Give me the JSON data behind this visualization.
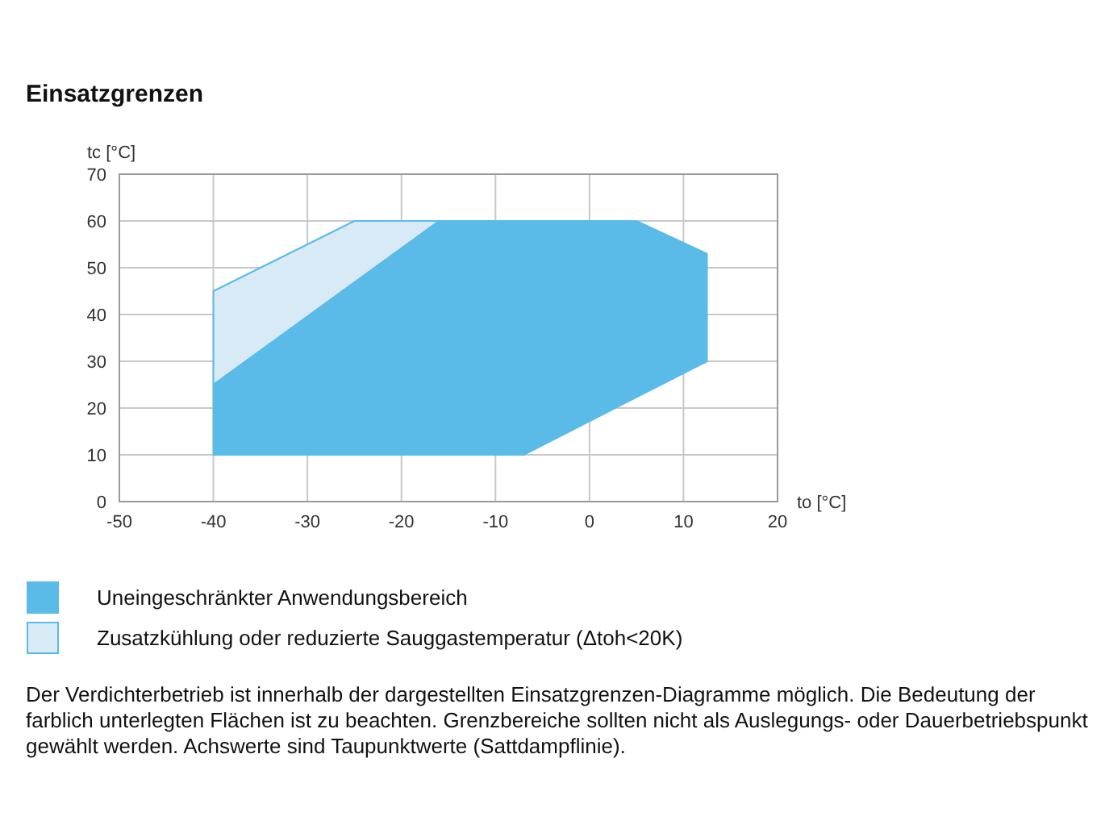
{
  "chart_data": {
    "type": "area",
    "title": "Einsatzgrenzen",
    "xlabel": "to [°C]",
    "ylabel": "tc [°C]",
    "xlim": [
      -50,
      20
    ],
    "xticks": [
      -50,
      -40,
      -30,
      -20,
      -10,
      0,
      10,
      20
    ],
    "ylim": [
      0,
      70
    ],
    "yticks": [
      0,
      10,
      20,
      30,
      40,
      50,
      60,
      70
    ],
    "grid": true,
    "legend": "bottom",
    "series": [
      {
        "name": "Uneingeschränkter Anwendungsbereich",
        "color": "#5bbbe8",
        "x": [
          -40,
          -7,
          12.5,
          12.5,
          5,
          -16,
          -40,
          -40
        ],
        "values": [
          10,
          10,
          30,
          53,
          60,
          60,
          25,
          10
        ]
      },
      {
        "name": "Zusatzkühlung oder reduzierte Sauggastemperatur (Δtoh<20K)",
        "color": "#d7eaf6",
        "x": [
          -40,
          -16,
          -25,
          -40,
          -40
        ],
        "values": [
          25,
          60,
          60,
          45,
          25
        ]
      }
    ],
    "annotations": [
      "Der Verdichterbetrieb ist innerhalb der dargestellten Einsatzgrenzen-Diagramme möglich. Die Bedeutung der farblich unterlegten Flächen ist zu beachten. Grenzbereiche sollten nicht als Auslegungs- oder Dauerbetriebspunkt gewählt werden. Achswerte sind Taupunktwerte (Sattdampflinie)."
    ]
  }
}
